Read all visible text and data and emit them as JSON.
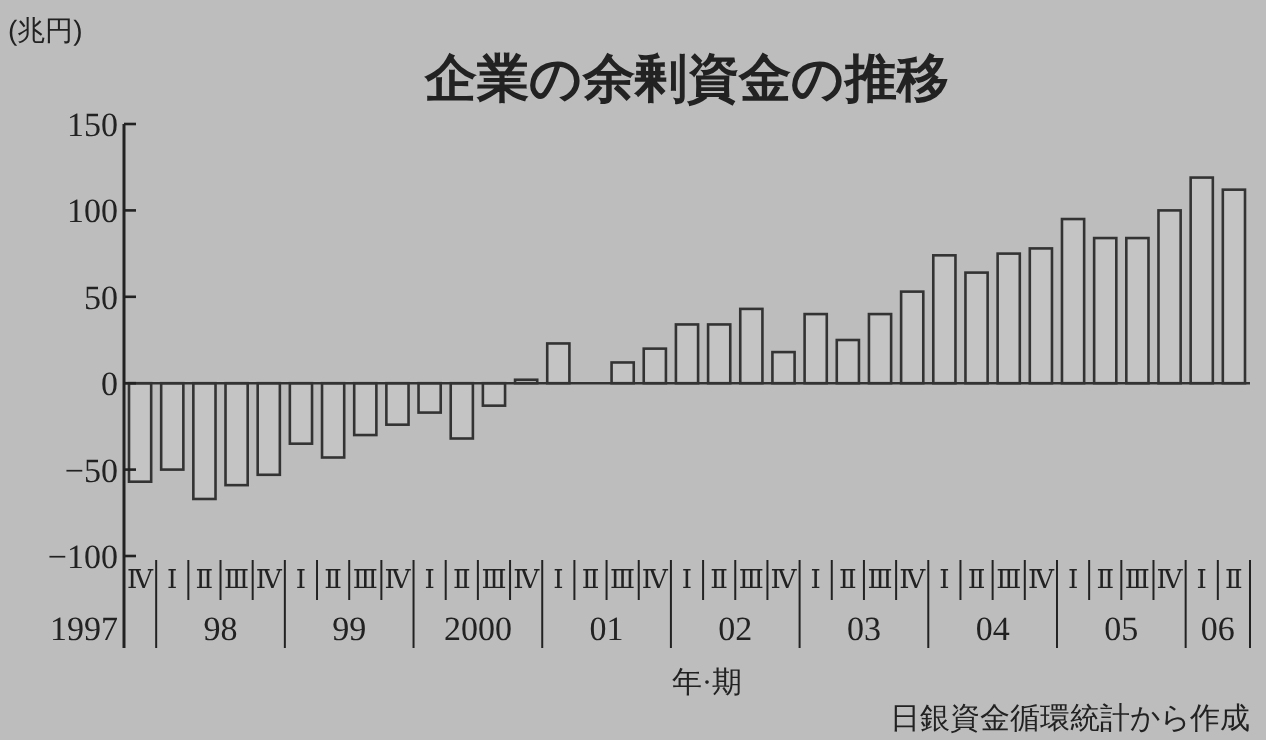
{
  "chart_data": {
    "type": "bar",
    "title": "企業の余剰資金の推移",
    "ylabel": "(兆円)",
    "xlabel": "年·期",
    "categories": [
      "Ⅳ",
      "Ⅰ",
      "Ⅱ",
      "Ⅲ",
      "Ⅳ",
      "Ⅰ",
      "Ⅱ",
      "Ⅲ",
      "Ⅳ",
      "Ⅰ",
      "Ⅱ",
      "Ⅲ",
      "Ⅳ",
      "Ⅰ",
      "Ⅱ",
      "Ⅲ",
      "Ⅳ",
      "Ⅰ",
      "Ⅱ",
      "Ⅲ",
      "Ⅳ",
      "Ⅰ",
      "Ⅱ",
      "Ⅲ",
      "Ⅳ",
      "Ⅰ",
      "Ⅱ",
      "Ⅲ",
      "Ⅳ",
      "Ⅰ",
      "Ⅱ",
      "Ⅲ",
      "Ⅳ",
      "Ⅰ",
      "Ⅱ"
    ],
    "values": [
      -57,
      -50,
      -67,
      -59,
      -53,
      -35,
      -43,
      -30,
      -24,
      -17,
      -32,
      -13,
      2,
      23,
      0,
      12,
      20,
      34,
      34,
      43,
      18,
      40,
      25,
      40,
      53,
      74,
      64,
      75,
      78,
      95,
      84,
      84,
      100,
      119,
      112
    ],
    "color": "#c4c4c4",
    "ylim": [
      -100,
      150
    ],
    "yticks": [
      -100,
      -50,
      0,
      50,
      100,
      150
    ],
    "grid": false,
    "ref_lines": [
      {
        "axis": "y",
        "value": 0
      }
    ],
    "annotations": [
      "1997",
      "98",
      "99",
      "2000",
      "01",
      "02",
      "03",
      "04",
      "05",
      "06",
      "日銀資金循環統計から作成"
    ]
  }
}
